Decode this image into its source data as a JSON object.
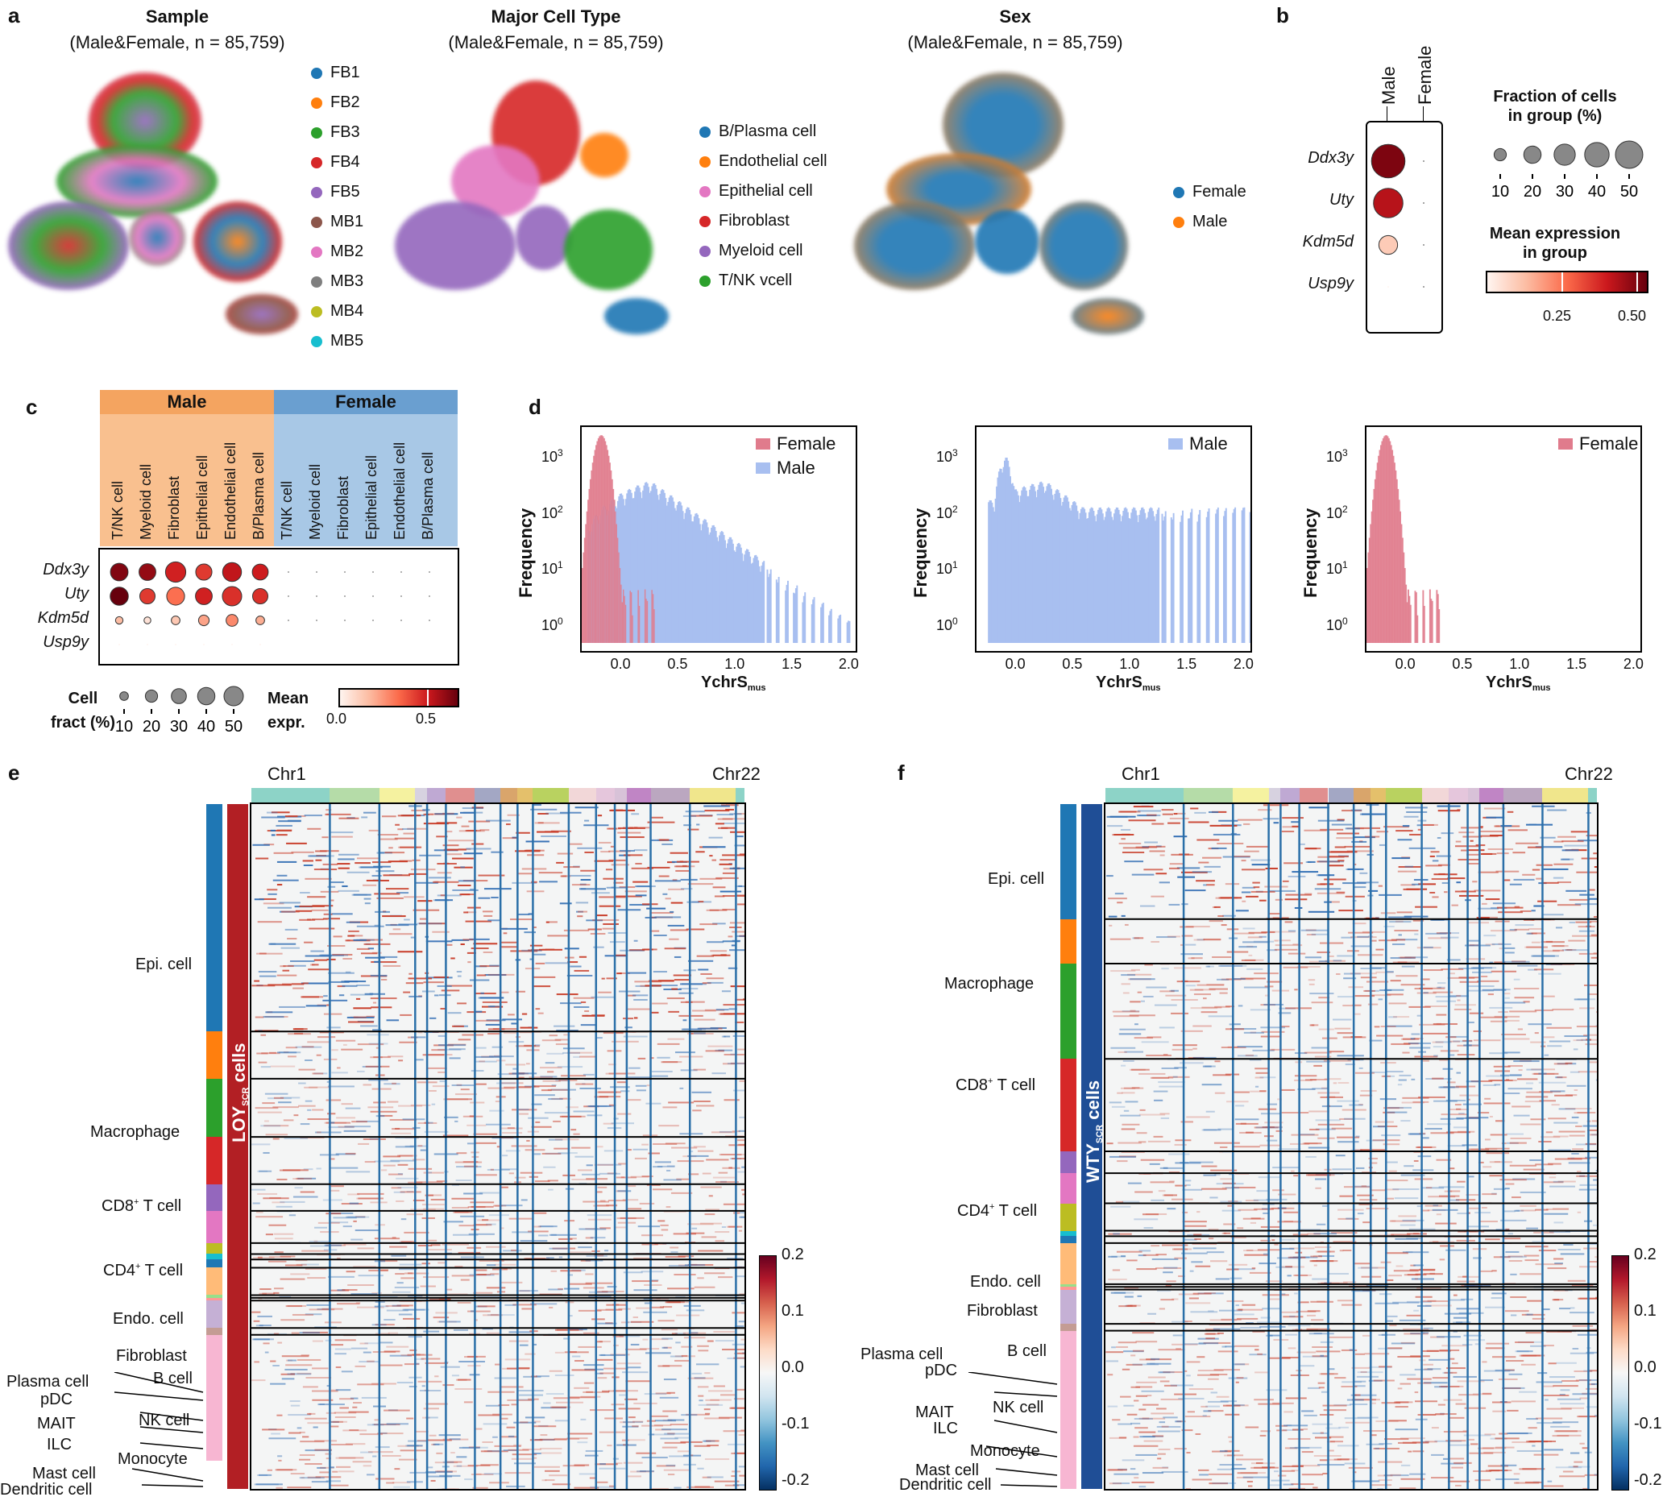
{
  "panel_labels": {
    "a": "a",
    "b": "b",
    "c": "c",
    "d": "d",
    "e": "e",
    "f": "f"
  },
  "panel_a": {
    "sample": {
      "title": "Sample",
      "subtitle": "(Male&Female, n = 85,759)",
      "legend": [
        "FB1",
        "FB2",
        "FB3",
        "FB4",
        "FB5",
        "MB1",
        "MB2",
        "MB3",
        "MB4",
        "MB5"
      ],
      "colors": [
        "#1f77b4",
        "#ff7f0e",
        "#2ca02c",
        "#d62728",
        "#9467bd",
        "#8c564b",
        "#e377c2",
        "#7f7f7f",
        "#bcbd22",
        "#17becf"
      ]
    },
    "cell_type": {
      "title": "Major Cell Type",
      "subtitle": "(Male&Female, n = 85,759)",
      "legend": [
        "B/Plasma cell",
        "Endothelial cell",
        "Epithelial cell",
        "Fibroblast",
        "Myeloid cell",
        "T/NK vcell"
      ],
      "colors": [
        "#1f77b4",
        "#ff7f0e",
        "#e377c2",
        "#d62728",
        "#9467bd",
        "#2ca02c"
      ]
    },
    "sex": {
      "title": "Sex",
      "subtitle": "(Male&Female, n = 85,759)",
      "legend": [
        "Female",
        "Male"
      ],
      "colors": [
        "#1f77b4",
        "#ff7f0e"
      ]
    }
  },
  "panel_b": {
    "columns": [
      "Male",
      "Female"
    ],
    "genes": [
      "Ddx3y",
      "Uty",
      "Kdm5d",
      "Usp9y"
    ],
    "size_legend_title_1": "Fraction of cells",
    "size_legend_title_2": "in group (%)",
    "size_ticks": [
      "10",
      "20",
      "30",
      "40",
      "50"
    ],
    "color_legend_title_1": "Mean expression",
    "color_legend_title_2": "in group",
    "color_ticks": [
      "0.25",
      "0.50"
    ],
    "male_fraction_pct": [
      48,
      37,
      15,
      2
    ],
    "male_mean_expr": [
      0.52,
      0.44,
      0.1,
      0.0
    ]
  },
  "panel_c": {
    "group_male": "Male",
    "group_female": "Female",
    "cell_types": [
      "T/NK cell",
      "Myeloid cell",
      "Fibroblast",
      "Epithelial cell",
      "Endothelial cell",
      "B/Plasma cell"
    ],
    "genes": [
      "Ddx3y",
      "Uty",
      "Kdm5d",
      "Usp9y"
    ],
    "size_title_1": "Cell",
    "size_title_2": "fract (%)",
    "size_ticks": [
      "10",
      "20",
      "30",
      "40",
      "50"
    ],
    "color_title_1": "Mean",
    "color_title_2": "expr.",
    "color_ticks": [
      "0.0",
      "0.5"
    ],
    "male_fraction_pct": [
      [
        33,
        30,
        44,
        28,
        38,
        27
      ],
      [
        35,
        25,
        34,
        30,
        40,
        25
      ],
      [
        6,
        5,
        8,
        12,
        15,
        8
      ],
      [
        1,
        1,
        1,
        1,
        1,
        1
      ]
    ],
    "male_mean_expr": [
      [
        0.58,
        0.55,
        0.45,
        0.4,
        0.48,
        0.46
      ],
      [
        0.62,
        0.4,
        0.3,
        0.45,
        0.42,
        0.42
      ],
      [
        0.15,
        0.05,
        0.12,
        0.2,
        0.25,
        0.18
      ],
      [
        0.0,
        0.0,
        0.0,
        0.0,
        0.0,
        0.0
      ]
    ]
  },
  "panel_d": {
    "ylabel": "Frequency",
    "xlabel": "YchrS",
    "xlabel_sub": "mus",
    "xticks": [
      "0.0",
      "0.5",
      "1.0",
      "1.5",
      "2.0"
    ],
    "yticks": [
      "10",
      "10",
      "10",
      "10"
    ],
    "yexps": [
      "3",
      "2",
      "1",
      "0"
    ],
    "plots": [
      {
        "legend": [
          "Female",
          "Male"
        ]
      },
      {
        "legend": [
          "Male"
        ]
      },
      {
        "legend": [
          "Female"
        ]
      }
    ]
  },
  "chart_data": [
    {
      "type": "histogram",
      "title": "",
      "xlabel": "YchrS_mus",
      "ylabel": "Frequency",
      "yscale": "log",
      "xlim": [
        -0.35,
        2.05
      ],
      "series": [
        {
          "name": "Female",
          "color": "#e07b8c",
          "peak_x": -0.18,
          "peak_count": 2500
        },
        {
          "name": "Male",
          "color": "#a8bff0",
          "peak_x": 0.3,
          "peak_count": 300
        }
      ]
    },
    {
      "type": "histogram",
      "xlabel": "YchrS_mus",
      "ylabel": "Frequency",
      "yscale": "log",
      "xlim": [
        -0.35,
        2.05
      ],
      "series": [
        {
          "name": "Male",
          "color": "#a8bff0",
          "peak_x": -0.1,
          "peak_count": 800
        }
      ]
    },
    {
      "type": "histogram",
      "xlabel": "YchrS_mus",
      "ylabel": "Frequency",
      "yscale": "log",
      "xlim": [
        -0.35,
        2.05
      ],
      "series": [
        {
          "name": "Female",
          "color": "#e07b8c",
          "peak_x": -0.18,
          "peak_count": 2500
        }
      ]
    }
  ],
  "panel_e": {
    "chr_start": "Chr1",
    "chr_end": "Chr22",
    "group_main": "LOY",
    "group_sub": "SCR",
    "group_suffix": " cells",
    "colorbar_ticks": [
      "0.2",
      "0.1",
      "0.0",
      "-0.1",
      "-0.2"
    ],
    "labels": [
      "Epi. cell",
      "Macrophage",
      "CD8",
      "CD4",
      "Endo. cell",
      "Fibroblast",
      "B cell",
      "Plasma cell",
      "pDC",
      "NK cell",
      "MAIT",
      "ILC",
      "Monocyte",
      "Mast cell",
      "Dendritic cell"
    ],
    "t_suffix": " T cell",
    "plus": "+"
  },
  "panel_f": {
    "chr_start": "Chr1",
    "chr_end": "Chr22",
    "group_main": "WTY",
    "group_sub": "SCR",
    "group_suffix": " cells",
    "colorbar_ticks": [
      "0.2",
      "0.1",
      "0.0",
      "-0.1",
      "-0.2"
    ],
    "labels": [
      "Epi. cell",
      "Macrophage",
      "CD8",
      "CD4",
      "Endo. cell",
      "Fibroblast",
      "B cell",
      "Plasma cell",
      "pDC",
      "NK cell",
      "MAIT",
      "ILC",
      "Monocyte",
      "Mast cell",
      "Dendritic cell"
    ],
    "t_suffix": " T cell",
    "plus": "+"
  }
}
